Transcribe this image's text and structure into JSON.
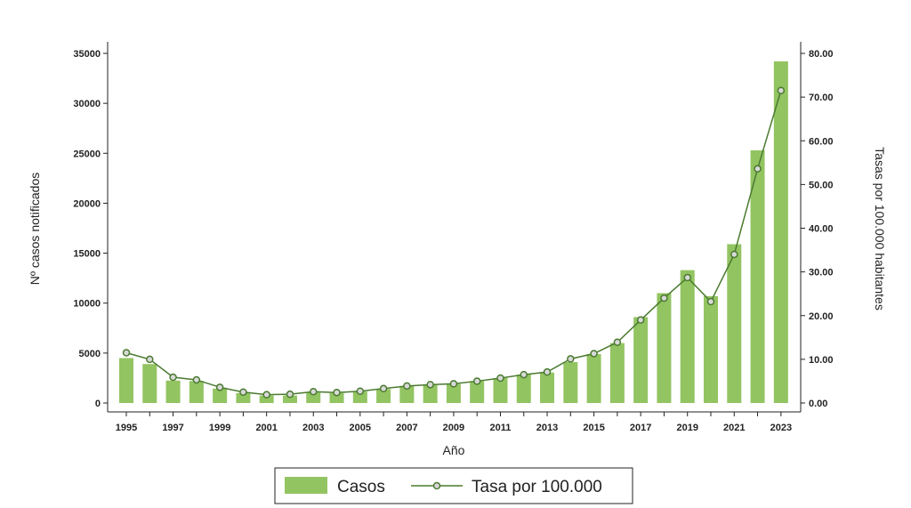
{
  "chart_data": {
    "type": "bar",
    "categories": [
      "1995",
      "1996",
      "1997",
      "1998",
      "1999",
      "2000",
      "2001",
      "2002",
      "2003",
      "2004",
      "2005",
      "2006",
      "2007",
      "2008",
      "2009",
      "2010",
      "2011",
      "2012",
      "2013",
      "2014",
      "2015",
      "2016",
      "2017",
      "2018",
      "2019",
      "2020",
      "2021",
      "2022",
      "2023"
    ],
    "x_tick_labels": [
      "1995",
      "1997",
      "1999",
      "2001",
      "2003",
      "2005",
      "2007",
      "2009",
      "2011",
      "2013",
      "2015",
      "2017",
      "2019",
      "2021",
      "2023"
    ],
    "series": [
      {
        "name": "Casos",
        "type": "bar",
        "axis": "left",
        "color": "#93c462",
        "values": [
          4500,
          3900,
          2250,
          2200,
          1450,
          1000,
          750,
          750,
          1050,
          1000,
          1150,
          1400,
          1700,
          1800,
          1900,
          2200,
          2500,
          2850,
          3050,
          4100,
          4900,
          6000,
          8600,
          11000,
          13300,
          10700,
          15900,
          25300,
          34200
        ]
      },
      {
        "name": "Tasa por 100.000",
        "type": "line",
        "axis": "right",
        "color": "#4a7a2f",
        "values": [
          11.5,
          10.0,
          5.9,
          5.3,
          3.6,
          2.5,
          1.9,
          2.0,
          2.6,
          2.4,
          2.7,
          3.3,
          3.9,
          4.2,
          4.4,
          5.0,
          5.7,
          6.5,
          7.1,
          10.1,
          11.3,
          13.9,
          19.0,
          24.0,
          28.7,
          23.2,
          34.0,
          53.6,
          71.5
        ]
      }
    ],
    "y_left": {
      "label": "Nº casos notificados",
      "ylim": [
        0,
        35000
      ],
      "ticks": [
        "0",
        "5000",
        "10000",
        "15000",
        "20000",
        "25000",
        "30000",
        "35000"
      ]
    },
    "y_right": {
      "label": "Tasas por 100.000 habitantes",
      "ylim": [
        0,
        80
      ],
      "ticks": [
        "0.00",
        "10.00",
        "20.00",
        "30.00",
        "40.00",
        "50.00",
        "60.00",
        "70.00",
        "80.00"
      ]
    },
    "xlabel": "Año",
    "grid": false,
    "legend_position": "bottom"
  },
  "legend": {
    "bars_label": "Casos",
    "line_label": "Tasa por 100.000"
  },
  "colors": {
    "bar": "#93c462",
    "line": "#4a7a2f",
    "marker_fill": "#d8d8d8",
    "axis": "#222222"
  }
}
